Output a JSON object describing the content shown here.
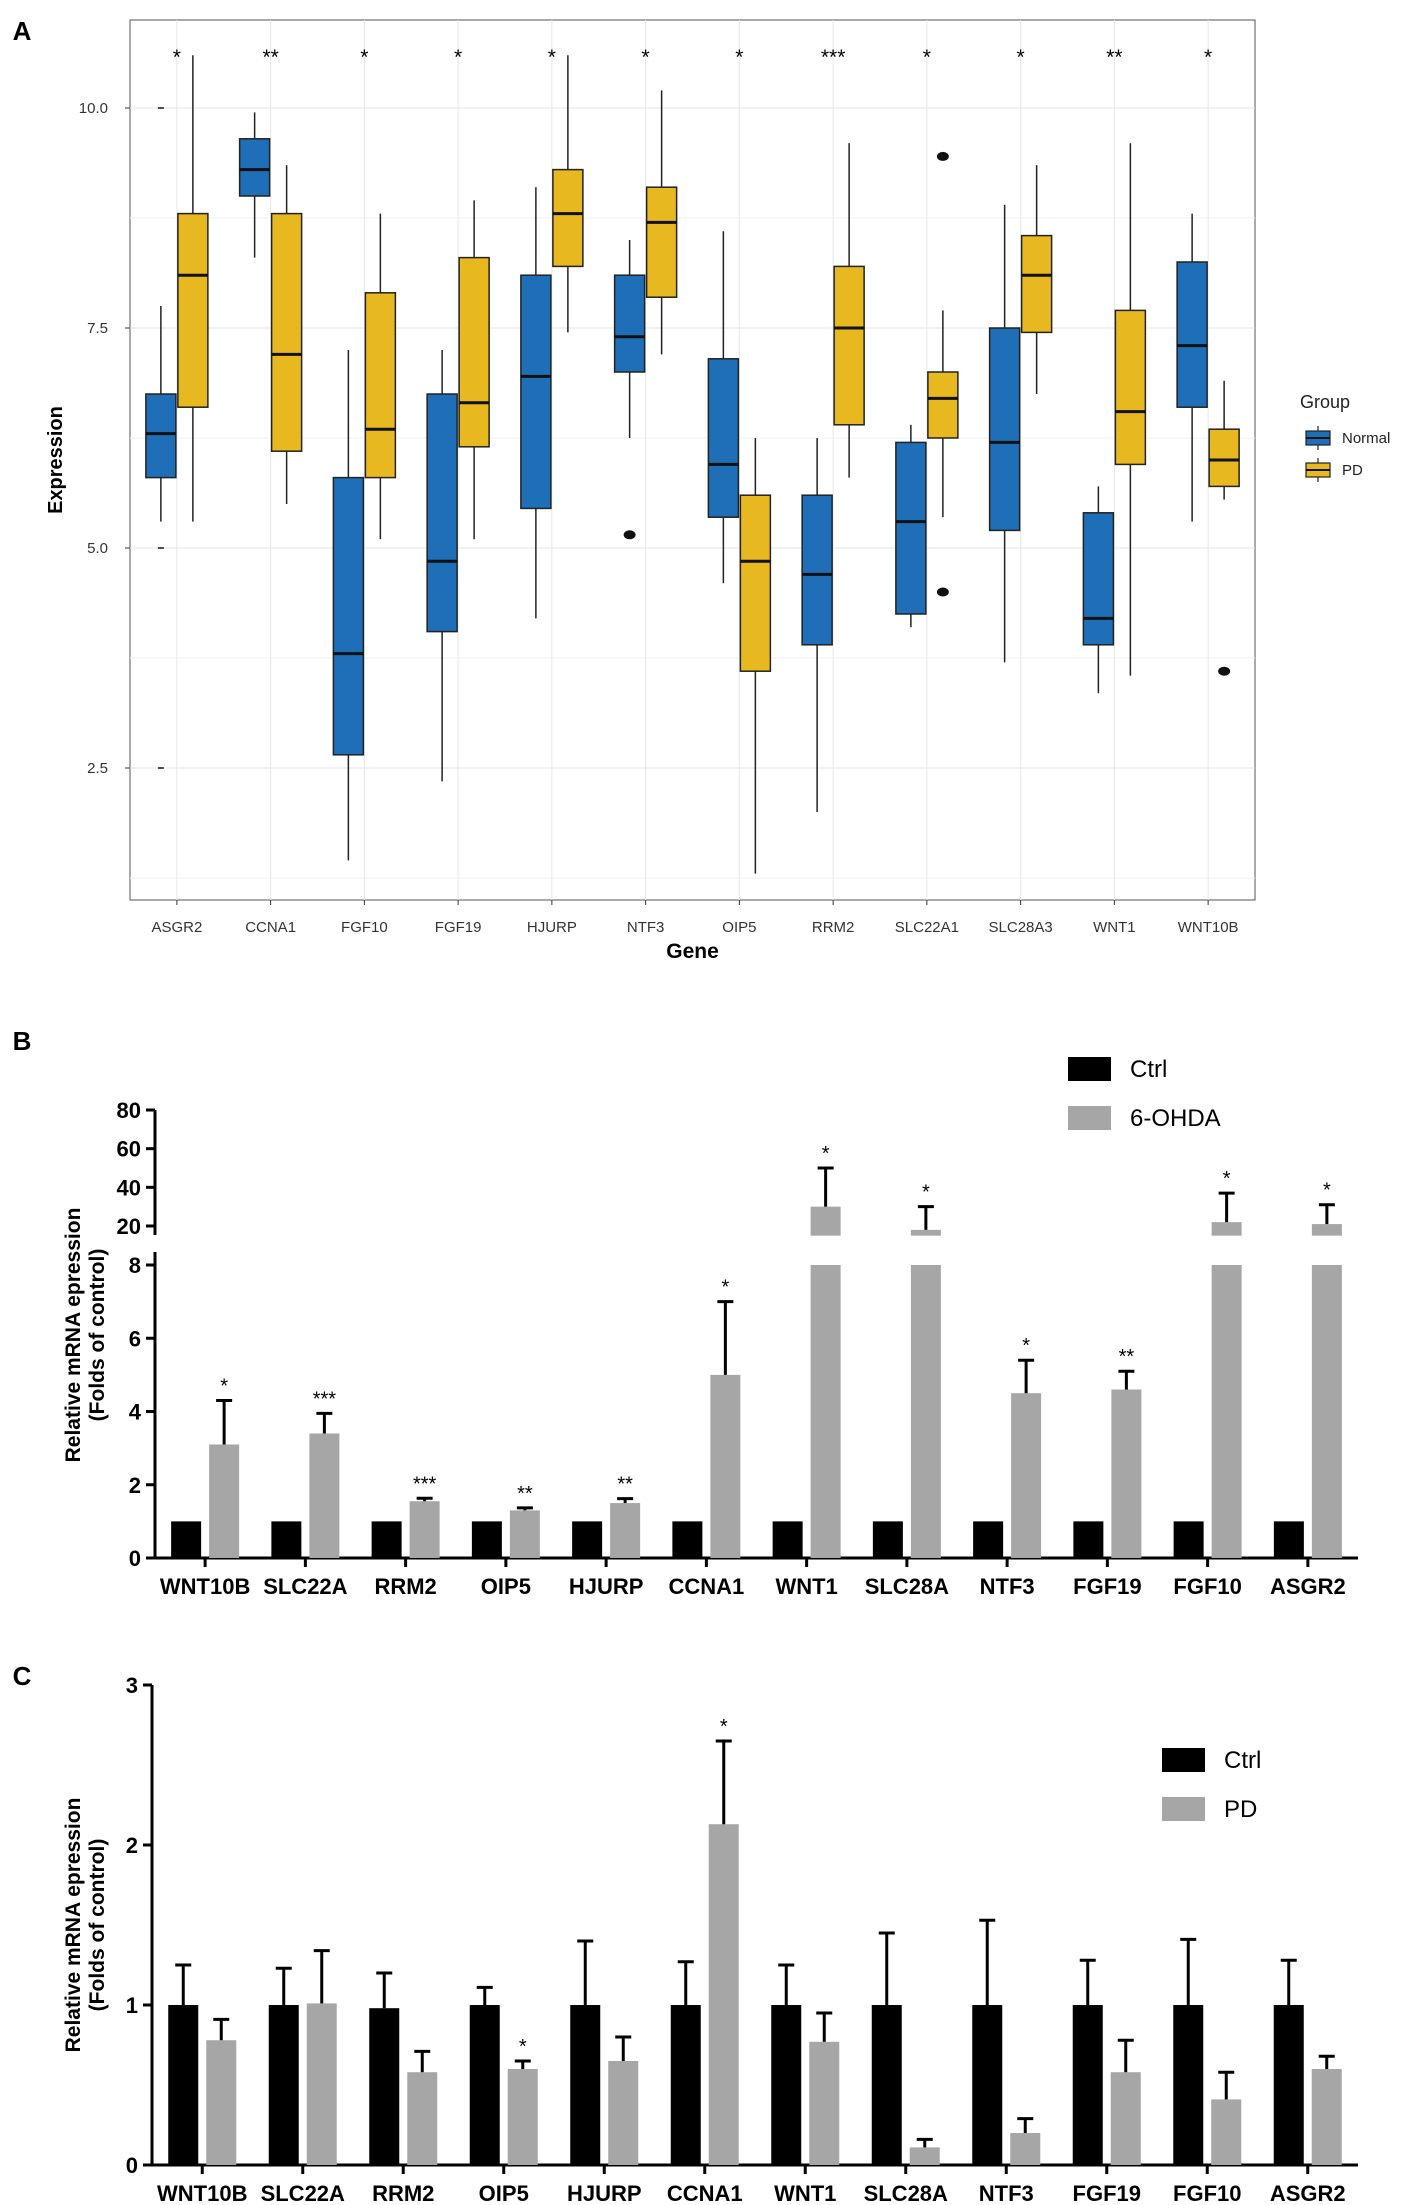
{
  "colors": {
    "normal": "#1f6fb8",
    "pd": "#e8b820",
    "ctrl": "#000000",
    "treated": "#a6a6a6",
    "panel_bg": "#ffffff",
    "grid": "#e6e6e6",
    "border": "#555555"
  },
  "chart_data": [
    {
      "type": "box",
      "panel_label": "A",
      "xlabel": "Gene",
      "ylabel": "Expression",
      "ylim": [
        1.0,
        11.0
      ],
      "yticks": [
        2.5,
        5.0,
        7.5,
        10.0
      ],
      "ytick_labels": [
        "2.5",
        "5.0",
        "7.5",
        "10.0"
      ],
      "legend_title": "Group",
      "legend": [
        "Normal",
        "PD"
      ],
      "categories": [
        "ASGR2",
        "CCNA1",
        "FGF10",
        "FGF19",
        "HJURP",
        "NTF3",
        "OIP5",
        "RRM2",
        "SLC22A1",
        "SLC28A3",
        "WNT1",
        "WNT10B"
      ],
      "significance": [
        "*",
        "**",
        "*",
        "*",
        "*",
        "*",
        "*",
        "***",
        "*",
        "*",
        "**",
        "*"
      ],
      "series": [
        {
          "name": "Normal",
          "boxes": [
            {
              "whislo": 5.3,
              "q1": 5.8,
              "med": 6.3,
              "q3": 6.75,
              "whishi": 7.75,
              "fliers": [
                10.0,
                5.0,
                2.5
              ],
              "flier_style": "dash"
            },
            {
              "whislo": 8.3,
              "q1": 9.0,
              "med": 9.3,
              "q3": 9.65,
              "whishi": 9.95,
              "fliers": []
            },
            {
              "whislo": 1.45,
              "q1": 2.65,
              "med": 3.8,
              "q3": 5.8,
              "whishi": 7.25,
              "fliers": []
            },
            {
              "whislo": 2.35,
              "q1": 4.05,
              "med": 4.85,
              "q3": 6.75,
              "whishi": 7.25,
              "fliers": []
            },
            {
              "whislo": 4.2,
              "q1": 5.45,
              "med": 6.95,
              "q3": 8.1,
              "whishi": 9.1,
              "fliers": []
            },
            {
              "whislo": 6.25,
              "q1": 7.0,
              "med": 7.4,
              "q3": 8.1,
              "whishi": 8.5,
              "fliers": [
                5.15
              ]
            },
            {
              "whislo": 4.6,
              "q1": 5.35,
              "med": 5.95,
              "q3": 7.15,
              "whishi": 8.6,
              "fliers": []
            },
            {
              "whislo": 2.0,
              "q1": 3.9,
              "med": 4.7,
              "q3": 5.6,
              "whishi": 6.25,
              "fliers": []
            },
            {
              "whislo": 4.1,
              "q1": 4.25,
              "med": 5.3,
              "q3": 6.2,
              "whishi": 6.4,
              "fliers": []
            },
            {
              "whislo": 3.7,
              "q1": 5.2,
              "med": 6.2,
              "q3": 7.5,
              "whishi": 8.9,
              "fliers": []
            },
            {
              "whislo": 3.35,
              "q1": 3.9,
              "med": 4.2,
              "q3": 5.4,
              "whishi": 5.7,
              "fliers": []
            },
            {
              "whislo": 5.3,
              "q1": 6.6,
              "med": 7.3,
              "q3": 8.25,
              "whishi": 8.8,
              "fliers": []
            }
          ]
        },
        {
          "name": "PD",
          "boxes": [
            {
              "whislo": 5.3,
              "q1": 6.6,
              "med": 8.1,
              "q3": 8.8,
              "whishi": 10.6,
              "fliers": []
            },
            {
              "whislo": 5.5,
              "q1": 6.1,
              "med": 7.2,
              "q3": 8.8,
              "whishi": 9.35,
              "fliers": []
            },
            {
              "whislo": 5.1,
              "q1": 5.8,
              "med": 6.35,
              "q3": 7.9,
              "whishi": 8.8,
              "fliers": []
            },
            {
              "whislo": 5.1,
              "q1": 6.15,
              "med": 6.65,
              "q3": 8.3,
              "whishi": 8.95,
              "fliers": []
            },
            {
              "whislo": 7.45,
              "q1": 8.2,
              "med": 8.8,
              "q3": 9.3,
              "whishi": 10.6,
              "fliers": []
            },
            {
              "whislo": 7.2,
              "q1": 7.85,
              "med": 8.7,
              "q3": 9.1,
              "whishi": 10.2,
              "fliers": []
            },
            {
              "whislo": 1.3,
              "q1": 3.6,
              "med": 4.85,
              "q3": 5.6,
              "whishi": 6.25,
              "fliers": []
            },
            {
              "whislo": 5.8,
              "q1": 6.4,
              "med": 7.5,
              "q3": 8.2,
              "whishi": 9.6,
              "fliers": []
            },
            {
              "whislo": 5.35,
              "q1": 6.25,
              "med": 6.7,
              "q3": 7.0,
              "whishi": 7.7,
              "fliers": [
                9.45,
                4.5
              ]
            },
            {
              "whislo": 6.75,
              "q1": 7.45,
              "med": 8.1,
              "q3": 8.55,
              "whishi": 9.35,
              "fliers": []
            },
            {
              "whislo": 3.55,
              "q1": 5.95,
              "med": 6.55,
              "q3": 7.7,
              "whishi": 9.6,
              "fliers": []
            },
            {
              "whislo": 5.55,
              "q1": 5.7,
              "med": 6.0,
              "q3": 6.35,
              "whishi": 6.9,
              "fliers": [
                3.6
              ]
            }
          ]
        }
      ]
    },
    {
      "type": "bar",
      "panel_label": "B",
      "ylabel_line1": "Relative mRNA epression",
      "ylabel_line2": "(Folds of control)",
      "categories": [
        "WNT10B",
        "SLC22A",
        "RRM2",
        "OIP5",
        "HJURP",
        "CCNA1",
        "WNT1",
        "SLC28A",
        "NTF3",
        "FGF19",
        "FGF10",
        "ASGR2"
      ],
      "axis_break": {
        "lower_ylim": [
          0,
          8
        ],
        "lower_ticks": [
          0,
          2,
          4,
          6,
          8
        ],
        "upper_ylim": [
          15,
          80
        ],
        "upper_ticks": [
          20,
          40,
          60,
          80
        ]
      },
      "legend": [
        "Ctrl",
        "6-OHDA"
      ],
      "significance": [
        "*",
        "***",
        "***",
        "**",
        "**",
        "*",
        "*",
        "*",
        "*",
        "**",
        "*",
        "*"
      ],
      "series": [
        {
          "name": "Ctrl",
          "values": [
            1,
            1,
            1,
            1,
            1,
            1,
            1,
            1,
            1,
            1,
            1,
            1
          ],
          "errors": [
            0,
            0,
            0,
            0,
            0,
            0,
            0,
            0,
            0,
            0,
            0,
            0
          ]
        },
        {
          "name": "6-OHDA",
          "values": [
            3.1,
            3.4,
            1.55,
            1.3,
            1.5,
            5.0,
            30,
            18,
            4.5,
            4.6,
            22,
            21
          ],
          "errors": [
            1.2,
            0.55,
            0.08,
            0.07,
            0.12,
            2.0,
            20,
            12,
            0.9,
            0.5,
            15,
            10
          ]
        }
      ]
    },
    {
      "type": "bar",
      "panel_label": "C",
      "ylabel_line1": "Relative mRNA epression",
      "ylabel_line2": "(Folds of control)",
      "categories": [
        "WNT10B",
        "SLC22A",
        "RRM2",
        "OIP5",
        "HJURP",
        "CCNA1",
        "WNT1",
        "SLC28A",
        "NTF3",
        "FGF19",
        "FGF10",
        "ASGR2"
      ],
      "ylim": [
        0,
        3
      ],
      "yticks": [
        0,
        1,
        2,
        3
      ],
      "legend": [
        "Ctrl",
        "PD"
      ],
      "significance": [
        "",
        "",
        "",
        "*",
        "",
        "*",
        "",
        "",
        "",
        "",
        "",
        ""
      ],
      "series": [
        {
          "name": "Ctrl",
          "values": [
            1.0,
            1.0,
            0.98,
            1.0,
            1.0,
            1.0,
            1.0,
            1.0,
            1.0,
            1.0,
            1.0,
            1.0
          ],
          "errors": [
            0.25,
            0.23,
            0.22,
            0.11,
            0.4,
            0.27,
            0.25,
            0.45,
            0.53,
            0.28,
            0.41,
            0.28
          ]
        },
        {
          "name": "PD",
          "values": [
            0.78,
            1.01,
            0.58,
            0.6,
            0.65,
            2.13,
            0.77,
            0.11,
            0.2,
            0.58,
            0.41,
            0.6
          ],
          "errors": [
            0.13,
            0.33,
            0.13,
            0.05,
            0.15,
            0.52,
            0.18,
            0.05,
            0.09,
            0.2,
            0.17,
            0.08
          ]
        }
      ]
    }
  ]
}
